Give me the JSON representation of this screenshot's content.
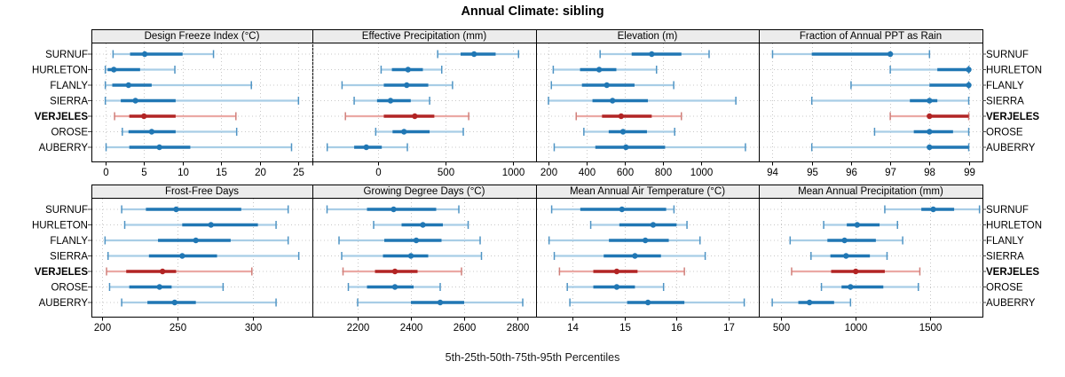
{
  "colors": {
    "background": "#ffffff",
    "border": "#000000",
    "grid": "#c8c8c8",
    "strip_bg": "#ececec",
    "tick": "#000000",
    "axis_tick_outer": "#444444",
    "normal": {
      "main": "#2077b4",
      "light": "#a8cde6",
      "cap": "#4f94c4"
    },
    "highlight": {
      "main": "#b22424",
      "light": "#eba9a4",
      "cap": "#d07f7a"
    }
  },
  "stations": [
    "SURNUF",
    "HURLETON",
    "FLANLY",
    "SIERRA",
    "VERJELES",
    "OROSE",
    "AUBERRY"
  ],
  "highlight_station": "VERJELES",
  "chart_data": {
    "type": "dotplot",
    "variant": "percentile-range-plot",
    "title": "Annual Climate: sibling",
    "caption": "5th-25th-50th-75th-95th Percentiles",
    "percentiles": [
      "5th",
      "25th",
      "50th",
      "75th",
      "95th"
    ],
    "legend_position": "none",
    "grid": "dotted",
    "panels": [
      {
        "label": "Design Freeze Index (°C)",
        "row": 0,
        "col": 0,
        "domain": [
          -1.8,
          26.8
        ],
        "ticks": [
          {
            "v": 0,
            "label": "0"
          },
          {
            "v": 5,
            "label": "5"
          },
          {
            "v": 10,
            "label": "10"
          },
          {
            "v": 15,
            "label": "15"
          },
          {
            "v": 20,
            "label": "20"
          },
          {
            "v": 25,
            "label": "25"
          }
        ],
        "values": {
          "SURNUF": [
            1.0,
            3.2,
            5.1,
            10.0,
            14.0
          ],
          "HURLETON": [
            0.0,
            0.3,
            1.1,
            4.5,
            9.0
          ],
          "FLANLY": [
            0.0,
            0.9,
            3.0,
            6.0,
            18.9
          ],
          "SIERRA": [
            0.0,
            2.0,
            3.9,
            9.1,
            25.0
          ],
          "VERJELES": [
            1.2,
            3.1,
            5.0,
            9.1,
            16.9
          ],
          "OROSE": [
            2.2,
            3.0,
            6.0,
            9.1,
            17.0
          ],
          "AUBERRY": [
            0.1,
            3.1,
            7.0,
            11.0,
            24.1
          ]
        }
      },
      {
        "label": "Effective Precipitation (mm)",
        "row": 0,
        "col": 1,
        "domain": [
          -490,
          1170
        ],
        "ticks": [
          {
            "v": -490,
            "label": ""
          },
          {
            "v": 0,
            "label": "0"
          },
          {
            "v": 500,
            "label": "500"
          },
          {
            "v": 1000,
            "label": "1000"
          }
        ],
        "values": {
          "SURNUF": [
            440,
            610,
            710,
            870,
            1040
          ],
          "HURLETON": [
            20,
            100,
            220,
            330,
            470
          ],
          "FLANLY": [
            -270,
            40,
            210,
            370,
            550
          ],
          "SIERRA": [
            -180,
            -10,
            90,
            240,
            380
          ],
          "VERJELES": [
            -245,
            40,
            270,
            415,
            670
          ],
          "OROSE": [
            -20,
            105,
            190,
            380,
            630
          ],
          "AUBERRY": [
            -380,
            -180,
            -90,
            25,
            215
          ]
        }
      },
      {
        "label": "Elevation (m)",
        "row": 0,
        "col": 2,
        "domain": [
          135,
          1300
        ],
        "ticks": [
          {
            "v": 200,
            "label": "200"
          },
          {
            "v": 400,
            "label": "400"
          },
          {
            "v": 600,
            "label": "600"
          },
          {
            "v": 800,
            "label": "800"
          },
          {
            "v": 1000,
            "label": "1000"
          }
        ],
        "values": {
          "SURNUF": [
            470,
            635,
            740,
            895,
            1040
          ],
          "HURLETON": [
            225,
            365,
            465,
            555,
            765
          ],
          "FLANLY": [
            215,
            375,
            505,
            650,
            855
          ],
          "SIERRA": [
            200,
            430,
            535,
            720,
            1180
          ],
          "VERJELES": [
            345,
            480,
            580,
            740,
            895
          ],
          "OROSE": [
            385,
            515,
            590,
            715,
            860
          ],
          "AUBERRY": [
            230,
            445,
            605,
            810,
            1230
          ]
        }
      },
      {
        "label": "Fraction of Annual PPT as Rain",
        "row": 0,
        "col": 3,
        "domain": [
          93.65,
          99.35
        ],
        "ticks": [
          {
            "v": 94,
            "label": "94"
          },
          {
            "v": 95,
            "label": "95"
          },
          {
            "v": 96,
            "label": "96"
          },
          {
            "v": 97,
            "label": "97"
          },
          {
            "v": 98,
            "label": "98"
          },
          {
            "v": 99,
            "label": "99"
          }
        ],
        "values": {
          "SURNUF": [
            94.0,
            95.0,
            97.0,
            97.0,
            98.0
          ],
          "HURLETON": [
            97.0,
            98.2,
            99.0,
            99.0,
            99.0
          ],
          "FLANLY": [
            96.0,
            98.0,
            99.0,
            99.0,
            99.0
          ],
          "SIERRA": [
            95.0,
            97.5,
            98.0,
            98.2,
            99.0
          ],
          "VERJELES": [
            97.0,
            98.0,
            98.0,
            99.0,
            99.0
          ],
          "OROSE": [
            96.6,
            97.6,
            98.0,
            98.6,
            99.0
          ],
          "AUBERRY": [
            95.0,
            98.0,
            98.0,
            99.0,
            99.0
          ]
        }
      },
      {
        "label": "Frost-Free Days",
        "row": 1,
        "col": 0,
        "domain": [
          193,
          339
        ],
        "ticks": [
          {
            "v": 200,
            "label": "200"
          },
          {
            "v": 250,
            "label": "250"
          },
          {
            "v": 300,
            "label": "300"
          }
        ],
        "values": {
          "SURNUF": [
            213,
            229,
            249,
            292,
            323
          ],
          "HURLETON": [
            215,
            253,
            272,
            303,
            315
          ],
          "FLANLY": [
            202,
            237,
            262,
            285,
            323
          ],
          "SIERRA": [
            204,
            231,
            253,
            276,
            330
          ],
          "VERJELES": [
            203,
            216,
            240,
            249,
            299
          ],
          "OROSE": [
            205,
            218,
            238,
            246,
            280
          ],
          "AUBERRY": [
            213,
            230,
            248,
            262,
            315
          ]
        }
      },
      {
        "label": "Growing Degree Days (°C)",
        "row": 1,
        "col": 1,
        "domain": [
          2030,
          2870
        ],
        "ticks": [
          {
            "v": 2200,
            "label": "2200"
          },
          {
            "v": 2400,
            "label": "2400"
          },
          {
            "v": 2600,
            "label": "2600"
          },
          {
            "v": 2800,
            "label": "2800"
          }
        ],
        "values": {
          "SURNUF": [
            2085,
            2235,
            2335,
            2495,
            2580
          ],
          "HURLETON": [
            2260,
            2365,
            2445,
            2520,
            2615
          ],
          "FLANLY": [
            2130,
            2300,
            2420,
            2515,
            2660
          ],
          "SIERRA": [
            2140,
            2295,
            2400,
            2465,
            2665
          ],
          "VERJELES": [
            2145,
            2265,
            2340,
            2425,
            2590
          ],
          "OROSE": [
            2165,
            2235,
            2340,
            2410,
            2510
          ],
          "AUBERRY": [
            2200,
            2400,
            2510,
            2600,
            2820
          ]
        }
      },
      {
        "label": "Mean Annual Air Temperature (°C)",
        "row": 1,
        "col": 2,
        "domain": [
          13.3,
          17.58
        ],
        "ticks": [
          {
            "v": 14,
            "label": "14"
          },
          {
            "v": 15,
            "label": "15"
          },
          {
            "v": 16,
            "label": "16"
          },
          {
            "v": 17,
            "label": "17"
          }
        ],
        "values": {
          "SURNUF": [
            13.6,
            14.15,
            14.95,
            15.8,
            15.95
          ],
          "HURLETON": [
            14.35,
            14.9,
            15.55,
            16.0,
            16.2
          ],
          "FLANLY": [
            13.55,
            14.7,
            15.4,
            15.85,
            16.45
          ],
          "SIERRA": [
            13.65,
            14.6,
            15.2,
            15.7,
            16.55
          ],
          "VERJELES": [
            13.75,
            14.4,
            14.85,
            15.25,
            16.15
          ],
          "OROSE": [
            13.9,
            14.4,
            14.85,
            15.2,
            15.75
          ],
          "AUBERRY": [
            13.95,
            15.05,
            15.45,
            16.15,
            17.3
          ]
        }
      },
      {
        "label": "Mean Annual Precipitation (mm)",
        "row": 1,
        "col": 3,
        "domain": [
          350,
          1850
        ],
        "ticks": [
          {
            "v": 500,
            "label": "500"
          },
          {
            "v": 1000,
            "label": "1000"
          },
          {
            "v": 1500,
            "label": "1500"
          }
        ],
        "values": {
          "SURNUF": [
            1195,
            1440,
            1520,
            1660,
            1830
          ],
          "HURLETON": [
            785,
            940,
            1010,
            1160,
            1280
          ],
          "FLANLY": [
            560,
            810,
            925,
            1135,
            1315
          ],
          "SIERRA": [
            700,
            830,
            935,
            1095,
            1210
          ],
          "VERJELES": [
            570,
            835,
            1000,
            1195,
            1430
          ],
          "OROSE": [
            770,
            905,
            965,
            1185,
            1420
          ],
          "AUBERRY": [
            440,
            615,
            690,
            855,
            965
          ]
        }
      }
    ]
  }
}
